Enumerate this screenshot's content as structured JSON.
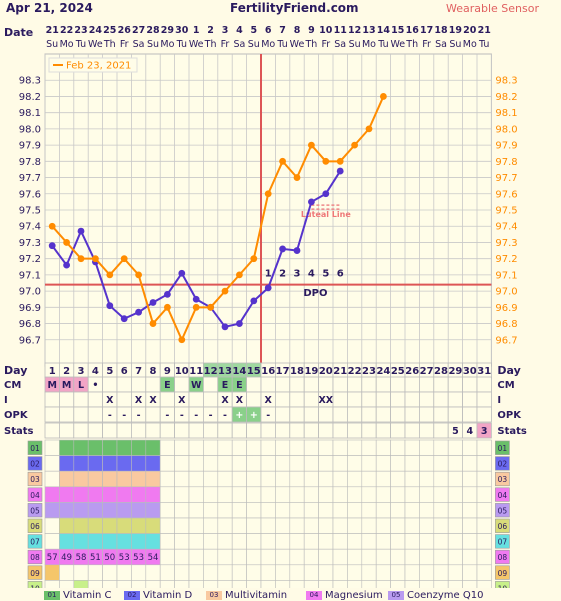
{
  "header": {
    "date": "Apr 21, 2024",
    "site": "FertilityFriend.com",
    "badge": "Wearable Sensor"
  },
  "row_labels": {
    "date": "Date",
    "day": "Day",
    "cm": "CM",
    "i": "I",
    "opk": "OPK",
    "stats": "Stats"
  },
  "dates": [
    "21",
    "22",
    "23",
    "24",
    "25",
    "26",
    "27",
    "28",
    "29",
    "30",
    "1",
    "2",
    "3",
    "4",
    "5",
    "6",
    "7",
    "8",
    "9",
    "10",
    "11",
    "12",
    "13",
    "14",
    "15",
    "16",
    "17",
    "18",
    "19",
    "20",
    "21"
  ],
  "weekdays": [
    "Su",
    "Mo",
    "Tu",
    "We",
    "Th",
    "Fr",
    "Sa",
    "Su",
    "Mo",
    "Tu",
    "We",
    "Th",
    "Fr",
    "Sa",
    "Su",
    "Mo",
    "Tu",
    "We",
    "Th",
    "Fr",
    "Sa",
    "Su",
    "Mo",
    "Tu",
    "We",
    "Th",
    "Fr",
    "Sa",
    "Su",
    "Mo",
    "Tu"
  ],
  "colors": {
    "purple": "#5533cc",
    "orange": "#ff8c00",
    "red": "#dd3333",
    "green": "#6abf6a",
    "pink": "#f2a5c6"
  },
  "chart_data": {
    "type": "line",
    "x": [
      1,
      2,
      3,
      4,
      5,
      6,
      7,
      8,
      9,
      10,
      11,
      12,
      13,
      14,
      15,
      16,
      17,
      18,
      19,
      20,
      21,
      22,
      23,
      24,
      25,
      26,
      27,
      28,
      29,
      30,
      31
    ],
    "y_ticks": [
      "96.7",
      "96.8",
      "96.9",
      "97.0",
      "97.1",
      "97.2",
      "97.3",
      "97.4",
      "97.5",
      "97.6",
      "97.7",
      "97.8",
      "97.9",
      "98.0",
      "98.1",
      "98.2",
      "98.3"
    ],
    "ylim": [
      96.6,
      98.4
    ],
    "series": [
      {
        "values": [
          97.28,
          97.16,
          97.37,
          97.18,
          96.91,
          96.83,
          96.87,
          96.93,
          96.98,
          97.11,
          96.95,
          96.9,
          96.78,
          96.8,
          96.94,
          97.02,
          97.26,
          97.25,
          97.55,
          97.6,
          97.74,
          null,
          null,
          null,
          null,
          null,
          null,
          null,
          null,
          null,
          null
        ]
      },
      {
        "name": "Feb 23, 2021",
        "values": [
          97.4,
          97.3,
          97.2,
          97.2,
          97.1,
          97.2,
          97.1,
          96.8,
          96.9,
          96.7,
          96.9,
          96.9,
          97.0,
          97.1,
          97.2,
          97.6,
          97.8,
          97.7,
          97.9,
          97.8,
          97.8,
          97.9,
          98.0,
          98.2,
          null,
          null,
          null,
          null,
          null,
          null,
          null
        ]
      }
    ],
    "ovulation_day": 15,
    "coverline": 97.04,
    "luteal_line_label": "Luteal Line",
    "luteal_line_value": 97.53,
    "dpo_numbers": [
      "1",
      "2",
      "3",
      "4",
      "5",
      "6"
    ],
    "dpo_label": "DPO"
  },
  "day_numbers": [
    "1",
    "2",
    "3",
    "4",
    "5",
    "6",
    "7",
    "8",
    "9",
    "10",
    "11",
    "12",
    "13",
    "14",
    "15",
    "16",
    "17",
    "18",
    "19",
    "20",
    "21",
    "22",
    "23",
    "24",
    "25",
    "26",
    "27",
    "28",
    "29",
    "30",
    "31"
  ],
  "cm_row": [
    "M",
    "M",
    "L",
    "•",
    "",
    "",
    "",
    "",
    "E",
    "",
    "W",
    "",
    "E",
    "E",
    "",
    "",
    "",
    "",
    "",
    "",
    "",
    "",
    "",
    "",
    "",
    "",
    "",
    "",
    "",
    "",
    ""
  ],
  "i_row": [
    "",
    "",
    "",
    "",
    "X",
    "",
    "X",
    "X",
    "",
    "X",
    "",
    "",
    "X",
    "X",
    "",
    "X",
    "",
    "",
    "",
    "XX",
    "",
    "",
    "",
    "",
    "",
    "",
    "",
    "",
    "",
    "",
    ""
  ],
  "opk_row": [
    "",
    "",
    "",
    "",
    "-",
    "-",
    "-",
    "",
    "-",
    "-",
    "-",
    "-",
    "-",
    "+",
    "+",
    "-",
    "",
    "",
    "",
    "",
    "",
    "",
    "",
    "",
    "",
    "",
    "",
    "",
    "",
    "",
    ""
  ],
  "stats_row": [
    "",
    "",
    "",
    "",
    "",
    "",
    "",
    "",
    "",
    "",
    "",
    "",
    "",
    "",
    "",
    "",
    "",
    "",
    "",
    "",
    "",
    "",
    "",
    "",
    "",
    "",
    "",
    "",
    "5",
    "4",
    "3"
  ],
  "supplement_rows": [
    "01",
    "02",
    "03",
    "04",
    "05",
    "06",
    "07",
    "08",
    "09",
    "10"
  ],
  "row08_values": [
    "57",
    "49",
    "58",
    "51",
    "50",
    "53",
    "53",
    "54"
  ],
  "legend": [
    {
      "code": "01",
      "label": "Vitamin C"
    },
    {
      "code": "02",
      "label": "Vitamin D"
    },
    {
      "code": "03",
      "label": "Multivitamin"
    },
    {
      "code": "04",
      "label": "Magnesium"
    },
    {
      "code": "05",
      "label": "Coenzyme Q10"
    }
  ]
}
